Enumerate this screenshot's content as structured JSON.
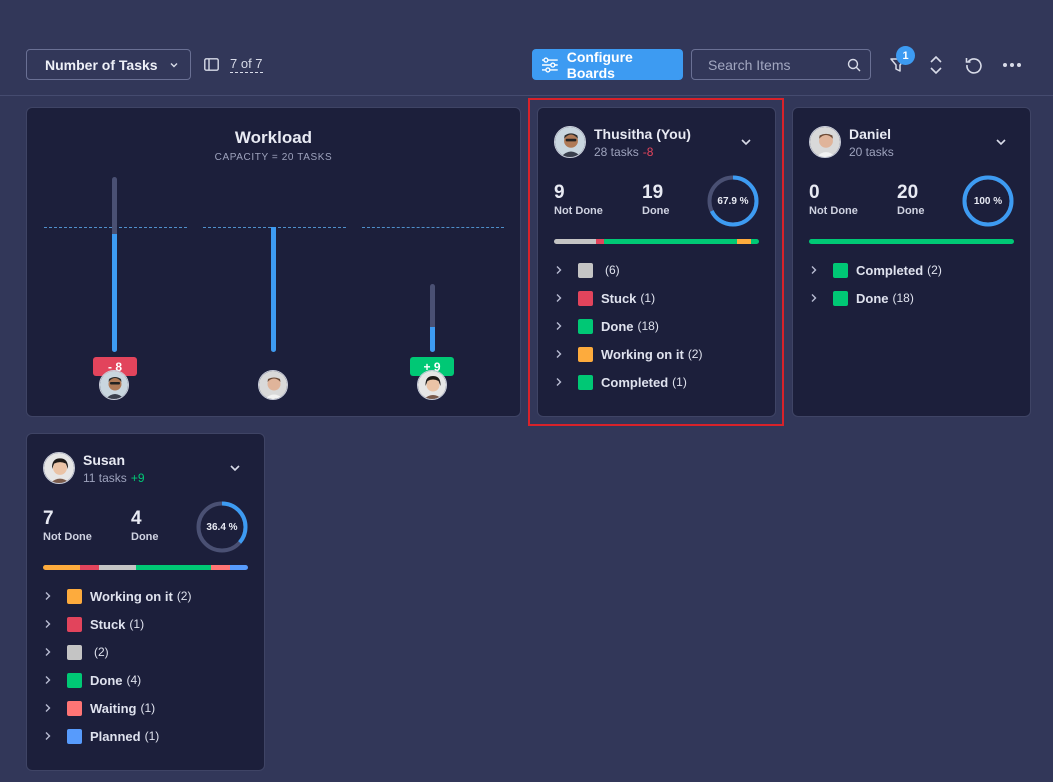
{
  "toolbar": {
    "metric_label": "Number of Tasks",
    "board_count": "7 of 7",
    "configure_label": "Configure Boards",
    "search_placeholder": "Search Items",
    "filter_badge": "1"
  },
  "workload": {
    "title": "Workload",
    "subtitle": "CAPACITY = 20 TASKS",
    "capacity": 20,
    "people": [
      {
        "name": "Thusitha",
        "tasks": 28,
        "delta": "- 8",
        "delta_color": "#e2445c"
      },
      {
        "name": "Daniel",
        "tasks": 20,
        "delta": "",
        "delta_color": ""
      },
      {
        "name": "Susan",
        "tasks": 11,
        "delta": "+ 9",
        "delta_color": "#00c875"
      }
    ]
  },
  "cards": [
    {
      "name": "Thusitha (You)",
      "tasks": "28 tasks",
      "delta": "-8",
      "not_done": "9",
      "not_done_label": "Not Done",
      "done": "19",
      "done_label": "Done",
      "percent_label": "67.9 %",
      "percent": 0.679,
      "statuses": [
        {
          "label": "",
          "count": "(6)",
          "color": "#c4c4c4"
        },
        {
          "label": "Stuck",
          "count": "(1)",
          "color": "#e2445c"
        },
        {
          "label": "Done",
          "count": "(18)",
          "color": "#00c875"
        },
        {
          "label": "Working on it",
          "count": "(2)",
          "color": "#fdab3d"
        },
        {
          "label": "Completed",
          "count": "(1)",
          "color": "#00c875"
        }
      ]
    },
    {
      "name": "Daniel",
      "tasks": "20 tasks",
      "delta": "",
      "not_done": "0",
      "not_done_label": "Not Done",
      "done": "20",
      "done_label": "Done",
      "percent_label": "100 %",
      "percent": 1.0,
      "statuses": [
        {
          "label": "Completed",
          "count": "(2)",
          "color": "#00c875"
        },
        {
          "label": "Done",
          "count": "(18)",
          "color": "#00c875"
        }
      ]
    },
    {
      "name": "Susan",
      "tasks": "11 tasks",
      "delta": "+9",
      "not_done": "7",
      "not_done_label": "Not Done",
      "done": "4",
      "done_label": "Done",
      "percent_label": "36.4 %",
      "percent": 0.364,
      "statuses": [
        {
          "label": "Working on it",
          "count": "(2)",
          "color": "#fdab3d"
        },
        {
          "label": "Stuck",
          "count": "(1)",
          "color": "#e2445c"
        },
        {
          "label": "",
          "count": "(2)",
          "color": "#c4c4c4"
        },
        {
          "label": "Done",
          "count": "(4)",
          "color": "#00c875"
        },
        {
          "label": "Waiting",
          "count": "(1)",
          "color": "#ff7575"
        },
        {
          "label": "Planned",
          "count": "(1)",
          "color": "#579bfc"
        }
      ]
    }
  ],
  "colors": {
    "accent": "#3d9bf2",
    "negative": "#e2445c",
    "positive": "#00c875",
    "highlight": "#d8222a"
  }
}
